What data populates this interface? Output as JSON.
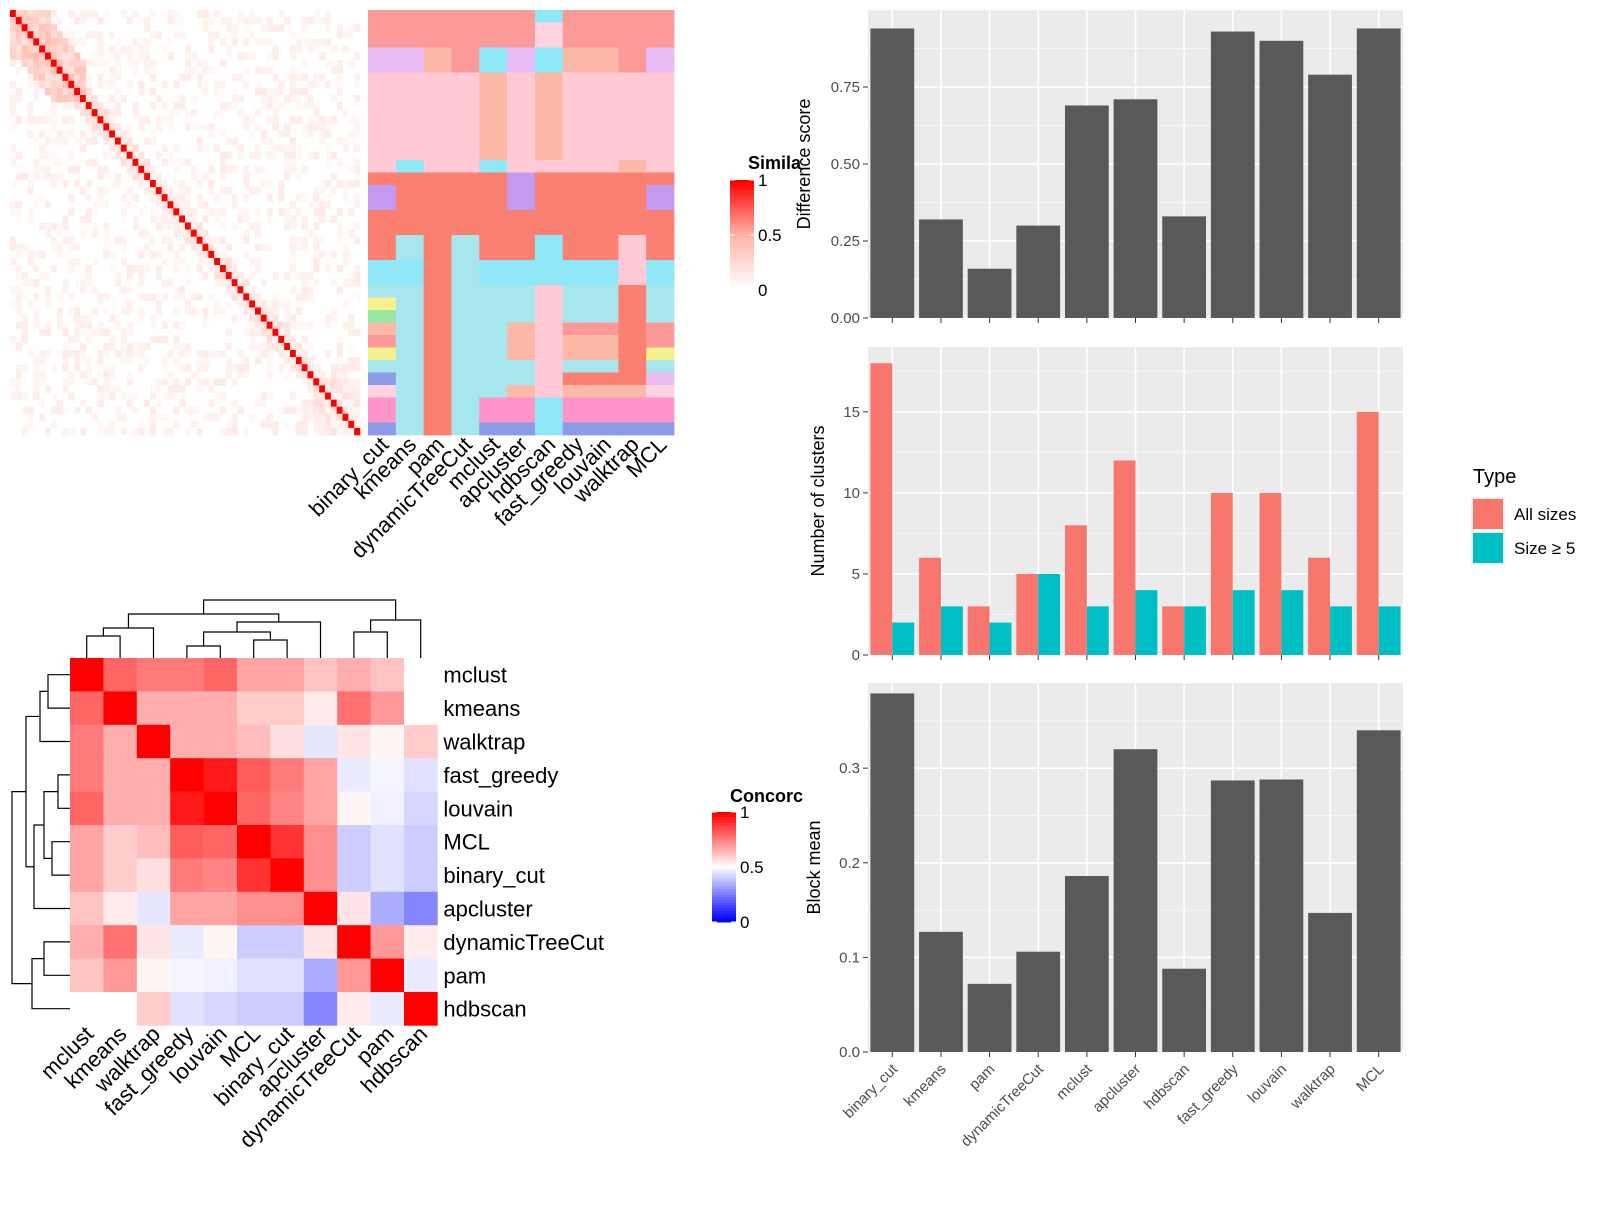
{
  "chart_data": [
    {
      "type": "heatmap",
      "name": "similarity_matrix",
      "legend_title": "Similarity",
      "legend_title_visible": "Simila",
      "legend_ticks": [
        "1",
        "0.5",
        "0"
      ],
      "block_sizes": [
        2,
        1,
        1,
        1,
        1,
        1,
        1,
        1,
        1,
        1,
        1,
        1,
        1,
        1,
        1,
        1,
        1,
        1,
        1,
        1,
        1,
        1,
        1,
        1,
        1,
        1,
        1,
        1,
        1,
        1,
        1,
        1,
        1,
        1,
        1,
        1,
        1,
        1,
        1,
        1,
        1,
        1,
        1,
        1,
        1,
        1,
        1,
        1,
        1,
        1,
        1,
        1,
        1,
        2
      ],
      "colors": {
        "high": "#ff0000",
        "mid": "#ffb3a7",
        "low": "#ffffff"
      }
    },
    {
      "type": "heatmap",
      "name": "cluster_assignments",
      "columns": [
        "binary_cut",
        "kmeans",
        "pam",
        "dynamicTreeCut",
        "mclust",
        "apcluster",
        "hdbscan",
        "fast_greedy",
        "louvain",
        "walktrap",
        "MCL"
      ],
      "palette": [
        "#fb9a99",
        "#e9bbf5",
        "#fcb9a8",
        "#ffc9d6",
        "#fa8072",
        "#c49af0",
        "#8ee8f8",
        "#a8e6ee",
        "#f6f08e",
        "#98e8a0",
        "#ff94c8",
        "#ffd2e0",
        "#8c9be6"
      ]
    },
    {
      "type": "bar",
      "name": "difference_score",
      "categories": [
        "binary_cut",
        "kmeans",
        "pam",
        "dynamicTreeCut",
        "mclust",
        "apcluster",
        "hdbscan",
        "fast_greedy",
        "louvain",
        "walktrap",
        "MCL"
      ],
      "values": [
        0.94,
        0.32,
        0.16,
        0.3,
        0.69,
        0.71,
        0.33,
        0.93,
        0.9,
        0.79,
        0.94
      ],
      "ylabel": "Difference score",
      "ylim": [
        0,
        1.0
      ],
      "yticks": [
        "0.00",
        "0.25",
        "0.50",
        "0.75"
      ],
      "color": "#595959"
    },
    {
      "type": "bar",
      "name": "number_of_clusters",
      "categories": [
        "binary_cut",
        "kmeans",
        "pam",
        "dynamicTreeCut",
        "mclust",
        "apcluster",
        "hdbscan",
        "fast_greedy",
        "louvain",
        "walktrap",
        "MCL"
      ],
      "series": [
        {
          "name": "All sizes",
          "values": [
            18,
            6,
            3,
            5,
            8,
            12,
            3,
            10,
            10,
            6,
            15
          ],
          "color": "#f8766d"
        },
        {
          "name": "Size ≥ 5",
          "values": [
            2,
            3,
            2,
            5,
            3,
            4,
            3,
            4,
            4,
            3,
            3
          ],
          "color": "#00bfc4"
        }
      ],
      "ylabel": "Number of clusters",
      "ylim": [
        0,
        19
      ],
      "yticks": [
        "0",
        "5",
        "10",
        "15"
      ],
      "legend_title": "Type",
      "legend_position": "right"
    },
    {
      "type": "bar",
      "name": "block_mean",
      "categories": [
        "binary_cut",
        "kmeans",
        "pam",
        "dynamicTreeCut",
        "mclust",
        "apcluster",
        "hdbscan",
        "fast_greedy",
        "louvain",
        "walktrap",
        "MCL"
      ],
      "values": [
        0.379,
        0.127,
        0.072,
        0.106,
        0.186,
        0.32,
        0.088,
        0.287,
        0.288,
        0.147,
        0.34
      ],
      "ylabel": "Block mean",
      "ylim": [
        0,
        0.39
      ],
      "yticks": [
        "0.0",
        "0.1",
        "0.2",
        "0.3"
      ],
      "color": "#595959"
    },
    {
      "type": "heatmap",
      "name": "concordance",
      "labels": [
        "mclust",
        "kmeans",
        "walktrap",
        "fast_greedy",
        "louvain",
        "MCL",
        "binary_cut",
        "apcluster",
        "dynamicTreeCut",
        "pam",
        "hdbscan"
      ],
      "matrix": [
        [
          1.0,
          0.8,
          0.76,
          0.76,
          0.8,
          0.68,
          0.68,
          0.62,
          0.66,
          0.62,
          0.5
        ],
        [
          0.8,
          1.0,
          0.66,
          0.66,
          0.66,
          0.6,
          0.6,
          0.54,
          0.78,
          0.7,
          0.5
        ],
        [
          0.76,
          0.66,
          1.0,
          0.66,
          0.66,
          0.63,
          0.56,
          0.45,
          0.55,
          0.52,
          0.6
        ],
        [
          0.76,
          0.66,
          0.66,
          1.0,
          0.95,
          0.82,
          0.76,
          0.68,
          0.46,
          0.48,
          0.44
        ],
        [
          0.8,
          0.66,
          0.66,
          0.95,
          1.0,
          0.8,
          0.74,
          0.68,
          0.52,
          0.47,
          0.42
        ],
        [
          0.68,
          0.6,
          0.63,
          0.82,
          0.8,
          1.0,
          0.9,
          0.72,
          0.4,
          0.44,
          0.4
        ],
        [
          0.68,
          0.6,
          0.56,
          0.76,
          0.74,
          0.9,
          1.0,
          0.72,
          0.4,
          0.44,
          0.4
        ],
        [
          0.62,
          0.54,
          0.45,
          0.68,
          0.68,
          0.72,
          0.72,
          1.0,
          0.55,
          0.34,
          0.26
        ],
        [
          0.66,
          0.78,
          0.55,
          0.46,
          0.52,
          0.4,
          0.4,
          0.55,
          1.0,
          0.7,
          0.54
        ],
        [
          0.62,
          0.7,
          0.52,
          0.48,
          0.47,
          0.44,
          0.44,
          0.34,
          0.7,
          1.0,
          0.46
        ],
        [
          0.5,
          0.5,
          0.6,
          0.44,
          0.42,
          0.4,
          0.4,
          0.26,
          0.54,
          0.46,
          1.0
        ]
      ],
      "legend_title": "Concordance",
      "legend_title_visible": "Concorc",
      "legend_ticks": [
        "1",
        "0.5",
        "0"
      ],
      "colors": {
        "high": "#ff0000",
        "mid": "#ffffff",
        "low": "#0000ff"
      }
    }
  ]
}
